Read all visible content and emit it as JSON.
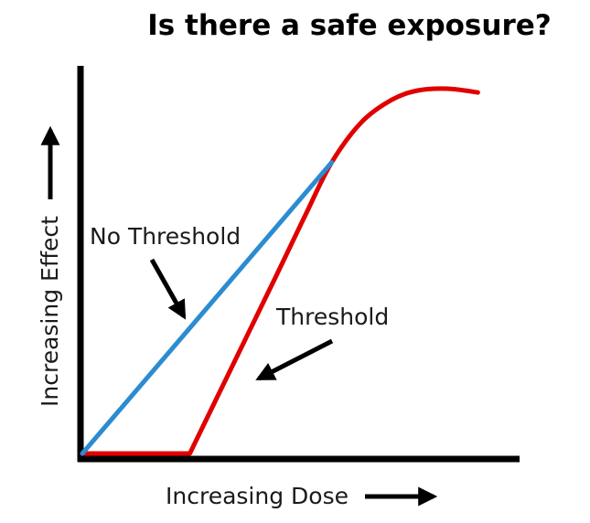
{
  "chart_data": {
    "type": "line",
    "title": "Is there a safe exposure?",
    "xlabel": "Increasing Dose",
    "ylabel": "Increasing Effect",
    "xlim": [
      0,
      100
    ],
    "ylim": [
      0,
      100
    ],
    "grid": false,
    "legend": "none",
    "series": [
      {
        "name": "No Threshold",
        "color": "#2b8cd1",
        "x": [
          0,
          58
        ],
        "y": [
          0,
          79
        ]
      },
      {
        "name": "Threshold",
        "color": "#e00000",
        "x": [
          0,
          25,
          35,
          45,
          52,
          58,
          65,
          72,
          78,
          85,
          92
        ],
        "y": [
          0,
          0,
          24,
          48,
          65,
          79,
          90,
          96,
          98.5,
          99,
          98
        ]
      }
    ],
    "annotations": [
      {
        "text": "No Threshold",
        "target_series": "No Threshold"
      },
      {
        "text": "Threshold",
        "target_series": "Threshold"
      }
    ]
  }
}
